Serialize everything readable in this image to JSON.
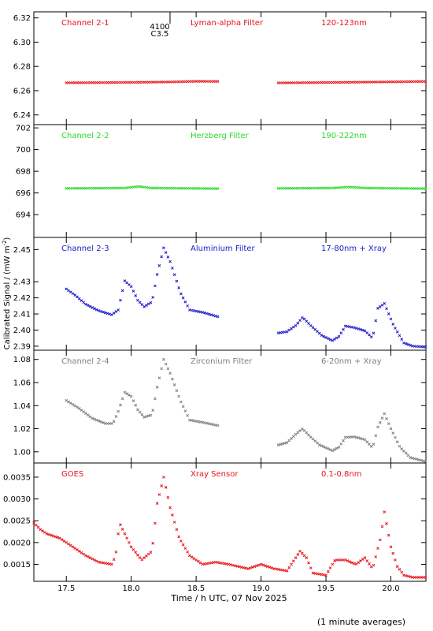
{
  "figure": {
    "ylabel": "Calibrated Signal / (mW m",
    "ylabel_sup": "-2",
    "ylabel_close": ")",
    "xlabel": "Time / h UTC, 07 Nov 2025",
    "footnote": "(1 minute averages)",
    "flare_marker": {
      "time": 18.22,
      "line1": "4100",
      "line2": "C3.5"
    }
  },
  "chart_data": [
    {
      "type": "scatter",
      "channel": "Channel 2-1",
      "filter": "Lyman-alpha Filter",
      "band": "120-123nm",
      "color": "#e8141c",
      "ylim": [
        6.232,
        6.325
      ],
      "yticks": [
        6.24,
        6.26,
        6.28,
        6.3,
        6.32
      ],
      "tick_decimals": 2,
      "xlim": [
        17.25,
        20.27
      ],
      "gaps": [
        [
          18.68,
          19.12
        ]
      ],
      "series": [
        {
          "points": [
            [
              17.5,
              6.2665
            ],
            [
              18.0,
              6.2668
            ],
            [
              18.3,
              6.2672
            ],
            [
              18.5,
              6.2677
            ],
            [
              18.68,
              6.2676
            ],
            [
              19.12,
              6.2664
            ],
            [
              19.6,
              6.2668
            ],
            [
              20.27,
              6.2676
            ]
          ]
        }
      ]
    },
    {
      "type": "scatter",
      "channel": "Channel 2-2",
      "filter": "Herzberg Filter",
      "band": "190-222nm",
      "color": "#2ad82a",
      "ylim": [
        691.9,
        702.3
      ],
      "yticks": [
        694,
        696,
        698,
        700,
        702
      ],
      "tick_decimals": 0,
      "xlim": [
        17.25,
        20.27
      ],
      "gaps": [
        [
          18.68,
          19.12
        ]
      ],
      "series": [
        {
          "points": [
            [
              17.5,
              696.42
            ],
            [
              17.95,
              696.45
            ],
            [
              18.06,
              696.6
            ],
            [
              18.15,
              696.45
            ],
            [
              18.68,
              696.4
            ],
            [
              19.12,
              696.42
            ],
            [
              19.55,
              696.45
            ],
            [
              19.68,
              696.55
            ],
            [
              19.8,
              696.45
            ],
            [
              20.27,
              696.4
            ]
          ]
        }
      ]
    },
    {
      "type": "scatter",
      "channel": "Channel 2-3",
      "filter": "Aluminium Filter",
      "band": "17-80nm + Xray",
      "color": "#1c1ccc",
      "ylim": [
        2.3875,
        2.4575
      ],
      "yticks": [
        2.39,
        2.4,
        2.41,
        2.42,
        2.43,
        2.45
      ],
      "tick_decimals": 2,
      "xlim": [
        17.25,
        20.27
      ],
      "gaps": [
        [
          18.68,
          19.12
        ]
      ],
      "series": [
        {
          "points": [
            [
              17.5,
              2.4255
            ],
            [
              17.57,
              2.4215
            ],
            [
              17.65,
              2.416
            ],
            [
              17.75,
              2.412
            ],
            [
              17.85,
              2.4095
            ],
            [
              17.9,
              2.4125
            ],
            [
              17.95,
              2.4305
            ],
            [
              18.0,
              2.427
            ],
            [
              18.05,
              2.4185
            ],
            [
              18.1,
              2.4145
            ],
            [
              18.16,
              2.4175
            ],
            [
              18.2,
              2.4345
            ],
            [
              18.25,
              2.451
            ],
            [
              18.3,
              2.4425
            ],
            [
              18.38,
              2.423
            ],
            [
              18.45,
              2.4125
            ],
            [
              18.55,
              2.411
            ],
            [
              18.68,
              2.408
            ],
            [
              19.12,
              2.398
            ],
            [
              19.2,
              2.399
            ],
            [
              19.27,
              2.403
            ],
            [
              19.32,
              2.408
            ],
            [
              19.38,
              2.403
            ],
            [
              19.47,
              2.3965
            ],
            [
              19.55,
              2.3935
            ],
            [
              19.6,
              2.396
            ],
            [
              19.65,
              2.4025
            ],
            [
              19.72,
              2.4015
            ],
            [
              19.8,
              2.3995
            ],
            [
              19.86,
              2.395
            ],
            [
              19.9,
              2.4135
            ],
            [
              19.95,
              2.4165
            ],
            [
              20.02,
              2.403
            ],
            [
              20.1,
              2.392
            ],
            [
              20.17,
              2.39
            ],
            [
              20.27,
              2.3895
            ]
          ]
        }
      ]
    },
    {
      "type": "scatter",
      "channel": "Channel 2-4",
      "filter": "Zirconium Filter",
      "band": "6-20nm + Xray",
      "color": "#7f7f7f",
      "ylim": [
        0.9903,
        1.088
      ],
      "yticks": [
        1.0,
        1.02,
        1.04,
        1.06,
        1.08
      ],
      "tick_decimals": 2,
      "xlim": [
        17.25,
        20.27
      ],
      "gaps": [
        [
          18.68,
          19.12
        ]
      ],
      "series": [
        {
          "points": [
            [
              17.5,
              1.0445
            ],
            [
              17.6,
              1.0375
            ],
            [
              17.7,
              1.029
            ],
            [
              17.8,
              1.0245
            ],
            [
              17.86,
              1.0245
            ],
            [
              17.9,
              1.035
            ],
            [
              17.95,
              1.0515
            ],
            [
              18.0,
              1.048
            ],
            [
              18.05,
              1.0365
            ],
            [
              18.1,
              1.03
            ],
            [
              18.16,
              1.032
            ],
            [
              18.2,
              1.056
            ],
            [
              18.25,
              1.08
            ],
            [
              18.3,
              1.068
            ],
            [
              18.38,
              1.044
            ],
            [
              18.45,
              1.0275
            ],
            [
              18.55,
              1.0255
            ],
            [
              18.68,
              1.0225
            ],
            [
              19.12,
              1.0055
            ],
            [
              19.2,
              1.008
            ],
            [
              19.27,
              1.0155
            ],
            [
              19.32,
              1.02
            ],
            [
              19.38,
              1.013
            ],
            [
              19.45,
              1.006
            ],
            [
              19.55,
              1.001
            ],
            [
              19.6,
              1.004
            ],
            [
              19.65,
              1.0125
            ],
            [
              19.72,
              1.013
            ],
            [
              19.8,
              1.0105
            ],
            [
              19.86,
              1.0035
            ],
            [
              19.9,
              1.0215
            ],
            [
              19.95,
              1.033
            ],
            [
              20.0,
              1.02
            ],
            [
              20.07,
              1.004
            ],
            [
              20.15,
              0.995
            ],
            [
              20.27,
              0.9915
            ]
          ]
        }
      ]
    },
    {
      "type": "scatter",
      "channel": "GOES",
      "filter": "Xray Sensor",
      "band": "0.1-0.8nm",
      "color": "#e8141c",
      "ylim": [
        0.00111,
        0.003825
      ],
      "yticks": [
        0.0015,
        0.002,
        0.0025,
        0.003,
        0.0035
      ],
      "tick_decimals": 4,
      "xlim": [
        17.25,
        20.27
      ],
      "gaps": [],
      "series": [
        {
          "points": [
            [
              17.25,
              0.00245
            ],
            [
              17.3,
              0.0023
            ],
            [
              17.35,
              0.0022
            ],
            [
              17.45,
              0.0021
            ],
            [
              17.55,
              0.0019
            ],
            [
              17.65,
              0.0017
            ],
            [
              17.75,
              0.00155
            ],
            [
              17.85,
              0.0015
            ],
            [
              17.88,
              0.0017
            ],
            [
              17.91,
              0.00245
            ],
            [
              17.95,
              0.0022
            ],
            [
              18.0,
              0.0019
            ],
            [
              18.08,
              0.0016
            ],
            [
              18.16,
              0.0018
            ],
            [
              18.2,
              0.0029
            ],
            [
              18.25,
              0.0035
            ],
            [
              18.3,
              0.0028
            ],
            [
              18.37,
              0.0021
            ],
            [
              18.45,
              0.0017
            ],
            [
              18.55,
              0.0015
            ],
            [
              18.65,
              0.00155
            ],
            [
              18.75,
              0.0015
            ],
            [
              18.9,
              0.0014
            ],
            [
              19.0,
              0.0015
            ],
            [
              19.1,
              0.0014
            ],
            [
              19.2,
              0.00135
            ],
            [
              19.3,
              0.0018
            ],
            [
              19.35,
              0.00165
            ],
            [
              19.4,
              0.0013
            ],
            [
              19.5,
              0.00125
            ],
            [
              19.57,
              0.0016
            ],
            [
              19.65,
              0.0016
            ],
            [
              19.73,
              0.0015
            ],
            [
              19.8,
              0.00165
            ],
            [
              19.86,
              0.0014
            ],
            [
              19.92,
              0.0021
            ],
            [
              19.95,
              0.0027
            ],
            [
              20.0,
              0.0019
            ],
            [
              20.05,
              0.00145
            ],
            [
              20.1,
              0.00125
            ],
            [
              20.17,
              0.0012
            ],
            [
              20.27,
              0.0012
            ]
          ]
        }
      ]
    }
  ],
  "xaxis": {
    "ticks": [
      17.5,
      18.0,
      18.5,
      19.0,
      19.5,
      20.0
    ],
    "tick_decimals": 1
  }
}
